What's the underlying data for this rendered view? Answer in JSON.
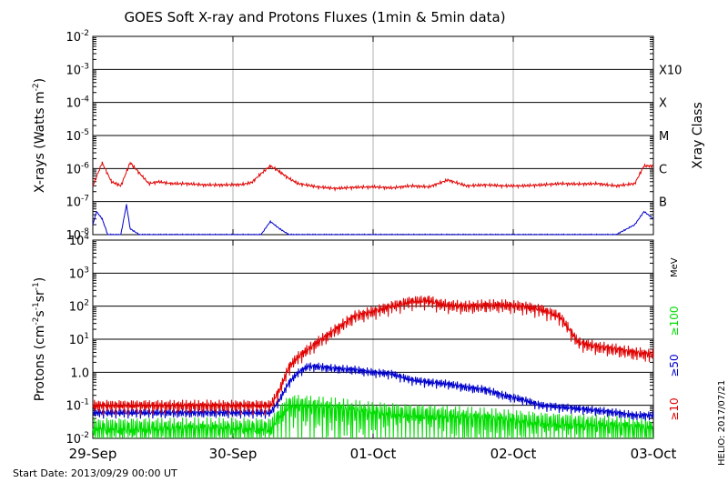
{
  "chart_data": [
    {
      "type": "line",
      "title": "GOES Soft X-ray and Protons Fluxes   (1min & 5min data)",
      "ylabel_main": "X-rays (Watts m",
      "ylabel_sup": "-2",
      "ylabel_end": ")",
      "yscale": "log",
      "ylim": [
        1e-08,
        0.01
      ],
      "y_ticks": [
        {
          "base": "10",
          "exp": "-2"
        },
        {
          "base": "10",
          "exp": "-3"
        },
        {
          "base": "10",
          "exp": "-4"
        },
        {
          "base": "10",
          "exp": "-5"
        },
        {
          "base": "10",
          "exp": "-6"
        },
        {
          "base": "10",
          "exp": "-7"
        },
        {
          "base": "10",
          "exp": "-8"
        }
      ],
      "right_axis_label": "Xray Class",
      "class_labels": [
        {
          "label": "X10",
          "value": 0.001
        },
        {
          "label": "X",
          "value": 0.0001
        },
        {
          "label": "M",
          "value": 1e-05
        },
        {
          "label": "C",
          "value": 1e-06
        },
        {
          "label": "B",
          "value": 1e-07
        }
      ],
      "series": [
        {
          "color": "#e00000",
          "x": [
            0,
            0.05,
            0.1,
            0.15,
            0.2,
            0.3,
            0.35,
            0.42,
            0.5,
            0.6,
            0.7,
            0.8,
            0.85,
            0.9,
            0.95,
            1.0,
            1.05,
            1.1,
            1.2,
            1.3,
            1.4,
            1.5,
            1.6,
            1.7,
            1.8,
            1.9,
            2.0,
            2.1,
            2.2,
            2.3,
            2.4,
            2.5,
            2.6,
            2.7,
            2.8,
            2.9,
            2.95,
            3.0
          ],
          "y": [
            3e-07,
            1.5e-06,
            4e-07,
            3e-07,
            1.5e-06,
            3.5e-07,
            4e-07,
            3.5e-07,
            3.5e-07,
            3.2e-07,
            3.2e-07,
            3.3e-07,
            3.8e-07,
            7e-07,
            1.2e-06,
            8e-07,
            5e-07,
            3.5e-07,
            2.8e-07,
            2.5e-07,
            2.7e-07,
            2.8e-07,
            2.6e-07,
            3e-07,
            2.8e-07,
            4.5e-07,
            3e-07,
            3.2e-07,
            3e-07,
            3e-07,
            3.2e-07,
            3.5e-07,
            3.4e-07,
            3.5e-07,
            3e-07,
            3.5e-07,
            1.2e-06,
            1.2e-06
          ]
        },
        {
          "color": "#0000cc",
          "x": [
            0,
            0.02,
            0.05,
            0.08,
            0.15,
            0.18,
            0.2,
            0.25,
            0.3,
            0.5,
            0.9,
            0.95,
            1.0,
            1.05,
            2.0,
            2.8,
            2.9,
            2.95,
            3.0
          ],
          "y": [
            2e-08,
            5e-08,
            3e-08,
            1e-08,
            1e-08,
            8e-08,
            1.5e-08,
            1e-08,
            1e-08,
            1e-08,
            1e-08,
            2.5e-08,
            1.5e-08,
            1e-08,
            1e-08,
            1e-08,
            2e-08,
            5e-08,
            3e-08
          ]
        }
      ]
    },
    {
      "type": "line",
      "ylabel_main": "Protons (cm",
      "ylabel_parts": [
        {
          "t": "-2"
        },
        {
          "t": "s"
        },
        {
          "t": "-1"
        },
        {
          "t": "sr"
        },
        {
          "t": "-1"
        }
      ],
      "yscale": "log",
      "ylim": [
        0.01,
        10000
      ],
      "y_ticks": [
        {
          "base": "10",
          "exp": "4"
        },
        {
          "base": "10",
          "exp": "3"
        },
        {
          "base": "10",
          "exp": "2"
        },
        {
          "base": "10",
          "exp": "1"
        },
        {
          "base": "10",
          "exp": "0",
          "mantissa": "1.0"
        },
        {
          "base": "10",
          "exp": "-1"
        },
        {
          "base": "10",
          "exp": "-2"
        }
      ],
      "threshold_dashed": 10,
      "right_unit": "MeV",
      "x_ticks": [
        "29-Sep",
        "30-Sep",
        "01-Oct",
        "02-Oct",
        "03-Oct"
      ],
      "series": [
        {
          "name": "≥10",
          "color": "#e00000",
          "x": [
            0,
            0.5,
            0.95,
            1.0,
            1.05,
            1.1,
            1.2,
            1.3,
            1.4,
            1.5,
            1.6,
            1.7,
            1.8,
            1.85,
            1.9,
            2.0,
            2.1,
            2.2,
            2.3,
            2.4,
            2.5,
            2.6,
            2.7,
            2.8,
            2.9,
            3.0
          ],
          "y": [
            0.1,
            0.1,
            0.1,
            0.3,
            1.5,
            3,
            8,
            20,
            50,
            70,
            100,
            140,
            150,
            120,
            110,
            100,
            110,
            110,
            100,
            80,
            50,
            8,
            6,
            5,
            4,
            3.5
          ]
        },
        {
          "name": "≥50",
          "color": "#0000cc",
          "x": [
            0,
            0.5,
            0.95,
            1.0,
            1.05,
            1.1,
            1.15,
            1.2,
            1.3,
            1.4,
            1.5,
            1.6,
            1.7,
            1.8,
            1.9,
            2.0,
            2.1,
            2.2,
            2.3,
            2.4,
            2.5,
            2.6,
            2.7,
            2.8,
            2.9,
            3.0
          ],
          "y": [
            0.06,
            0.06,
            0.06,
            0.15,
            0.5,
            1.0,
            1.5,
            1.5,
            1.3,
            1.2,
            1.0,
            0.9,
            0.6,
            0.5,
            0.45,
            0.35,
            0.3,
            0.2,
            0.15,
            0.1,
            0.09,
            0.08,
            0.07,
            0.06,
            0.05,
            0.05
          ]
        },
        {
          "name": "≥100",
          "color": "#00dd00",
          "x": [
            0,
            0.5,
            0.95,
            1.0,
            1.05,
            1.1,
            1.3,
            1.5,
            1.8,
            2.1,
            2.4,
            2.7,
            3.0
          ],
          "y": [
            0.02,
            0.02,
            0.02,
            0.05,
            0.1,
            0.1,
            0.08,
            0.06,
            0.05,
            0.04,
            0.03,
            0.025,
            0.02
          ]
        }
      ]
    }
  ],
  "footer": {
    "start_date": "Start Date: 2013/09/29 00:00 UT",
    "credit": "HELIO: 2017/07/21"
  },
  "colors": {
    "xray_long": "#e00000",
    "xray_short": "#0000cc",
    "p10": "#e00000",
    "p50": "#0000cc",
    "p100": "#00dd00",
    "grid": "#000000",
    "day_lines": "#b0b0b0"
  }
}
